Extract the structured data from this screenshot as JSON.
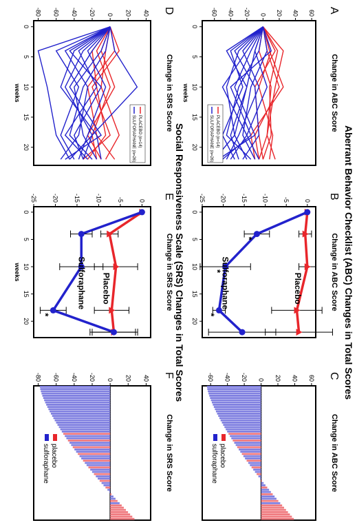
{
  "figure": {
    "abc_title": "Aberrant Behavior Checklist (ABC) Changes in Total Scores",
    "srs_title": "Social Responsiveness Scale (SRS) Changes in Total Scores"
  },
  "colors": {
    "placebo": "#e8262b",
    "sulforaphane": "#2222cc",
    "placebo_light": "#f07a7f",
    "sulforaphane_light": "#7f7fe0"
  },
  "chart_data": [
    {
      "panel": "A",
      "type": "line",
      "xlabel": "weeks",
      "ylabel": "Change in ABC Score",
      "xticks": [
        "0",
        "5",
        "10",
        "15",
        "20"
      ],
      "yticks": [
        "60",
        "40",
        "20",
        "0",
        "-20",
        "-40",
        "-60"
      ],
      "xlim": [
        -1,
        23
      ],
      "ylim": [
        -75,
        65
      ],
      "legend": [
        "PLACEBO (n=14)",
        "SULFORAPHANE (n=26)"
      ],
      "legend_position": "bottom-right",
      "series": [
        {
          "name": "PLACEBO (n=14)",
          "x": [
            0,
            4,
            10,
            18,
            22
          ],
          "y": [
            0,
            25,
            15,
            5,
            -5
          ]
        },
        {
          "name": "PLACEBO (n=14)",
          "x": [
            0,
            4,
            10,
            18,
            22
          ],
          "y": [
            0,
            18,
            8,
            10,
            0
          ]
        },
        {
          "name": "PLACEBO (n=14)",
          "x": [
            0,
            4,
            10,
            18,
            22
          ],
          "y": [
            0,
            10,
            -5,
            12,
            8
          ]
        },
        {
          "name": "PLACEBO (n=14)",
          "x": [
            0,
            4,
            10,
            18,
            22
          ],
          "y": [
            0,
            5,
            20,
            -10,
            -5
          ]
        },
        {
          "name": "PLACEBO (n=14)",
          "x": [
            0,
            4,
            10,
            18,
            22
          ],
          "y": [
            0,
            -5,
            10,
            5,
            15
          ]
        },
        {
          "name": "PLACEBO (n=14)",
          "x": [
            0,
            4,
            10,
            18,
            22
          ],
          "y": [
            0,
            15,
            -10,
            -5,
            0
          ]
        },
        {
          "name": "PLACEBO (n=14)",
          "x": [
            0,
            4,
            10,
            18,
            22
          ],
          "y": [
            0,
            8,
            25,
            -15,
            -10
          ]
        },
        {
          "name": "SULFORAPHANE (n=26)",
          "x": [
            0,
            4,
            10,
            18,
            22
          ],
          "y": [
            0,
            -30,
            -45,
            -35,
            -20
          ]
        },
        {
          "name": "SULFORAPHANE (n=26)",
          "x": [
            0,
            4,
            10,
            18,
            22
          ],
          "y": [
            0,
            -10,
            -20,
            -40,
            -30
          ]
        },
        {
          "name": "SULFORAPHANE (n=26)",
          "x": [
            0,
            4,
            10,
            18,
            22
          ],
          "y": [
            0,
            -25,
            -5,
            -30,
            -45
          ]
        },
        {
          "name": "SULFORAPHANE (n=26)",
          "x": [
            0,
            4,
            10,
            18,
            22
          ],
          "y": [
            0,
            -15,
            -35,
            -10,
            -55
          ]
        },
        {
          "name": "SULFORAPHANE (n=26)",
          "x": [
            0,
            4,
            10,
            18,
            22
          ],
          "y": [
            0,
            5,
            -15,
            -25,
            -10
          ]
        },
        {
          "name": "SULFORAPHANE (n=26)",
          "x": [
            0,
            4,
            10,
            18,
            22
          ],
          "y": [
            0,
            -40,
            -25,
            -50,
            -35
          ]
        },
        {
          "name": "SULFORAPHANE (n=26)",
          "x": [
            0,
            4,
            10,
            18,
            22
          ],
          "y": [
            0,
            -20,
            -50,
            -20,
            -40
          ]
        },
        {
          "name": "SULFORAPHANE (n=26)",
          "x": [
            0,
            4,
            10,
            18,
            22
          ],
          "y": [
            0,
            -5,
            -30,
            -45,
            -15
          ]
        },
        {
          "name": "SULFORAPHANE (n=26)",
          "x": [
            0,
            4,
            10,
            18,
            22
          ],
          "y": [
            0,
            -35,
            -10,
            -5,
            -25
          ]
        },
        {
          "name": "SULFORAPHANE (n=26)",
          "x": [
            0,
            4,
            10,
            18,
            22
          ],
          "y": [
            0,
            10,
            -40,
            -15,
            -50
          ]
        },
        {
          "name": "SULFORAPHANE (n=26)",
          "x": [
            0,
            4,
            10,
            18,
            22
          ],
          "y": [
            0,
            -45,
            -20,
            -35,
            -60
          ]
        },
        {
          "name": "SULFORAPHANE (n=26)",
          "x": [
            0,
            4,
            10,
            18,
            22
          ],
          "y": [
            0,
            -10,
            5,
            -20,
            -5
          ]
        }
      ]
    },
    {
      "panel": "B",
      "type": "line",
      "xlabel": "",
      "ylabel": "Change in ABC Score",
      "xticks": [
        "0",
        "5",
        "10",
        "15",
        "20"
      ],
      "yticks": [
        "0",
        "-5",
        "-10",
        "-15",
        "-20",
        "-25"
      ],
      "xlim": [
        -1,
        23
      ],
      "ylim": [
        -25,
        2
      ],
      "series": [
        {
          "name": "Placebo",
          "x": [
            0,
            4,
            10,
            18,
            22
          ],
          "y": [
            0,
            -0.5,
            0,
            -2.5,
            -2
          ],
          "err": [
            0,
            1.5,
            2,
            6,
            8
          ]
        },
        {
          "name": "Sulforaphane",
          "x": [
            0,
            4,
            10,
            18,
            22
          ],
          "y": [
            0,
            -12,
            -19.5,
            -21,
            -15.5
          ],
          "err": [
            0,
            3,
            6,
            1.5,
            8
          ]
        }
      ],
      "annotations": [
        "*",
        "*",
        "*"
      ],
      "labels": [
        "Placebo",
        "Sulforaphane"
      ]
    },
    {
      "panel": "C",
      "type": "bar",
      "xlabel": "",
      "ylabel": "Change in ABC Score",
      "yticks": [
        "60",
        "40",
        "20",
        "0",
        "-20",
        "-40",
        "-60"
      ],
      "ylim": [
        -70,
        65
      ],
      "legend": [
        "placebo",
        "sulforaphane"
      ],
      "legend_position": "bottom-left"
    },
    {
      "panel": "D",
      "type": "line",
      "xlabel": "weeks",
      "ylabel": "Change in SRS Score",
      "xticks": [
        "0",
        "5",
        "10",
        "15",
        "20"
      ],
      "yticks": [
        "40",
        "20",
        "0",
        "-20",
        "-40",
        "-60",
        "-80"
      ],
      "xlim": [
        -1,
        23
      ],
      "ylim": [
        -85,
        45
      ],
      "legend": [
        "PLACEBO (n=14)",
        "SULFORAPHANE (n=26)"
      ],
      "legend_position": "top-right",
      "series": [
        {
          "name": "PLACEBO (n=14)",
          "x": [
            0,
            4,
            10,
            18,
            22
          ],
          "y": [
            0,
            -20,
            -15,
            -5,
            -25
          ]
        },
        {
          "name": "PLACEBO (n=14)",
          "x": [
            0,
            4,
            10,
            18,
            22
          ],
          "y": [
            0,
            -10,
            5,
            -25,
            -10
          ]
        },
        {
          "name": "PLACEBO (n=14)",
          "x": [
            0,
            4,
            10,
            18,
            22
          ],
          "y": [
            0,
            5,
            -25,
            -15,
            5
          ]
        },
        {
          "name": "PLACEBO (n=14)",
          "x": [
            0,
            4,
            10,
            18,
            22
          ],
          "y": [
            0,
            -5,
            -10,
            10,
            -5
          ]
        },
        {
          "name": "PLACEBO (n=14)",
          "x": [
            0,
            4,
            10,
            18,
            22
          ],
          "y": [
            0,
            -15,
            0,
            -20,
            -15
          ]
        },
        {
          "name": "PLACEBO (n=14)",
          "x": [
            0,
            4,
            10,
            18,
            22
          ],
          "y": [
            0,
            10,
            -20,
            0,
            -30
          ]
        },
        {
          "name": "SULFORAPHANE (n=26)",
          "x": [
            0,
            4,
            10,
            18,
            22
          ],
          "y": [
            0,
            -45,
            -10,
            -40,
            -30
          ]
        },
        {
          "name": "SULFORAPHANE (n=26)",
          "x": [
            0,
            4,
            10,
            18,
            22
          ],
          "y": [
            0,
            -30,
            -50,
            -20,
            -45
          ]
        },
        {
          "name": "SULFORAPHANE (n=26)",
          "x": [
            0,
            4,
            10,
            18,
            22
          ],
          "y": [
            0,
            -60,
            -35,
            -55,
            -40
          ]
        },
        {
          "name": "SULFORAPHANE (n=26)",
          "x": [
            0,
            4,
            10,
            18,
            22
          ],
          "y": [
            0,
            -10,
            -40,
            -30,
            -15
          ]
        },
        {
          "name": "SULFORAPHANE (n=26)",
          "x": [
            0,
            4,
            10,
            18,
            22
          ],
          "y": [
            0,
            -35,
            -15,
            -50,
            -25
          ]
        },
        {
          "name": "SULFORAPHANE (n=26)",
          "x": [
            0,
            4,
            10,
            18,
            22
          ],
          "y": [
            0,
            -20,
            -45,
            -10,
            -50
          ]
        },
        {
          "name": "SULFORAPHANE (n=26)",
          "x": [
            0,
            4,
            10,
            18,
            22
          ],
          "y": [
            0,
            -50,
            -25,
            -35,
            -55
          ]
        },
        {
          "name": "SULFORAPHANE (n=26)",
          "x": [
            0,
            4,
            10,
            18,
            22
          ],
          "y": [
            0,
            -5,
            -30,
            -45,
            -20
          ]
        },
        {
          "name": "SULFORAPHANE (n=26)",
          "x": [
            0,
            4,
            10,
            18,
            22
          ],
          "y": [
            0,
            -25,
            -5,
            -25,
            -35
          ]
        },
        {
          "name": "SULFORAPHANE (n=26)",
          "x": [
            0,
            4,
            10,
            18,
            22
          ],
          "y": [
            0,
            -80,
            -70,
            -60,
            -45
          ]
        },
        {
          "name": "SULFORAPHANE (n=26)",
          "x": [
            0,
            4,
            10,
            18,
            22
          ],
          "y": [
            0,
            -40,
            -55,
            -15,
            -10
          ]
        },
        {
          "name": "SULFORAPHANE (n=26)",
          "x": [
            0,
            4,
            10,
            18,
            22
          ],
          "y": [
            0,
            5,
            30,
            -20,
            -30
          ]
        }
      ]
    },
    {
      "panel": "E",
      "type": "line",
      "xlabel": "weeks",
      "ylabel": "Change in SRS Score",
      "xticks": [
        "0",
        "5",
        "10",
        "15",
        "20"
      ],
      "yticks": [
        "0",
        "-5",
        "-10",
        "-15",
        "-20",
        "-25"
      ],
      "xlim": [
        -1,
        23
      ],
      "ylim": [
        -25,
        2
      ],
      "series": [
        {
          "name": "Placebo",
          "x": [
            0,
            4,
            10,
            18,
            22
          ],
          "y": [
            0,
            -7.5,
            -6,
            -7,
            -6.5
          ],
          "err": [
            0,
            2,
            5,
            4,
            5
          ]
        },
        {
          "name": "Sulforaphane",
          "x": [
            0,
            4,
            10,
            18,
            22
          ],
          "y": [
            0,
            -14,
            -14,
            -20.5,
            -6.5
          ],
          "err": [
            0,
            2.5,
            5,
            3,
            5.5
          ]
        }
      ],
      "annotations": [
        "*"
      ],
      "labels": [
        "Placebo",
        "Sulforaphane"
      ]
    },
    {
      "panel": "F",
      "type": "bar",
      "xlabel": "",
      "ylabel": "Change in SRS Score",
      "yticks": [
        "40",
        "20",
        "0",
        "-20",
        "-40",
        "-60",
        "-80"
      ],
      "ylim": [
        -85,
        45
      ],
      "legend": [
        "placebo",
        "sulforaphane"
      ],
      "legend_position": "bottom-left"
    }
  ]
}
